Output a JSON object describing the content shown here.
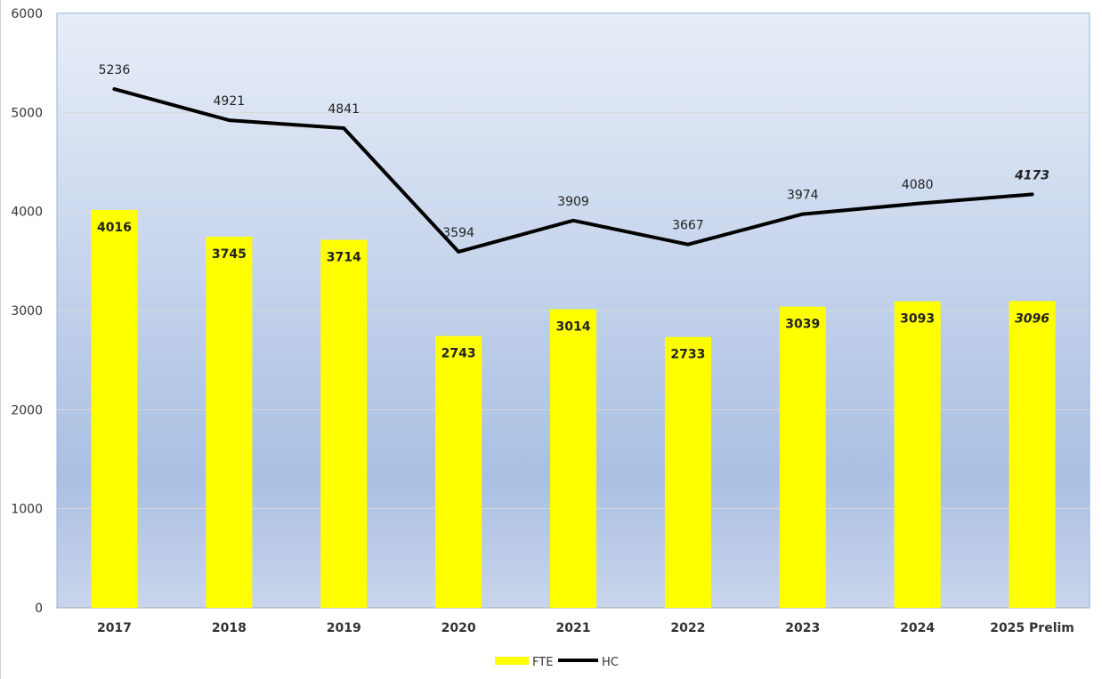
{
  "chart_data": {
    "type": "bar",
    "categories": [
      "2017",
      "2018",
      "2019",
      "2020",
      "2021",
      "2022",
      "2023",
      "2024",
      "2025 Prelim"
    ],
    "series": [
      {
        "name": "FTE",
        "kind": "bar",
        "color": "#ffff00",
        "values": [
          4016,
          3745,
          3714,
          2743,
          3014,
          2733,
          3039,
          3093,
          3096
        ],
        "labels": [
          "4016",
          "3745",
          "3714",
          "2743",
          "3014",
          "2733",
          "3039",
          "3093",
          "3096"
        ]
      },
      {
        "name": "HC",
        "kind": "line",
        "color": "#000000",
        "values": [
          5236,
          4921,
          4841,
          3594,
          3909,
          3667,
          3974,
          4080,
          4173
        ],
        "labels": [
          "5236",
          "4921",
          "4841",
          "3594",
          "3909",
          "3667",
          "3974",
          "4080",
          "4173"
        ]
      }
    ],
    "italic_last_label": true,
    "ylim": [
      0,
      6000
    ],
    "yticks": [
      "0",
      "1000",
      "2000",
      "3000",
      "4000",
      "5000",
      "6000"
    ],
    "grid": true,
    "legend": "bottom-center",
    "colors": {
      "plot_top": "#e8eef8",
      "plot_mid": "#aabfe2",
      "plot_bottom": "#c9d5ec",
      "plot_border": "#8fb4d9",
      "gridline": "#d9d9d9"
    }
  }
}
